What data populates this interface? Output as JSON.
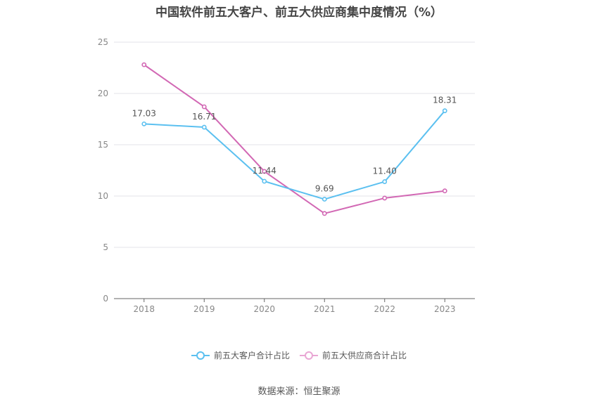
{
  "chart_data": {
    "type": "line",
    "title": "中国软件前五大客户、前五大供应商集中度情况（%）",
    "categories": [
      "2018",
      "2019",
      "2020",
      "2021",
      "2022",
      "2023"
    ],
    "ylim": [
      0,
      25
    ],
    "yticks": [
      "0",
      "5",
      "10",
      "15",
      "20",
      "25"
    ],
    "grid": true,
    "legend_position": "bottom",
    "series": [
      {
        "name": "前五大客户合计占比",
        "color": "#5bc0f0",
        "values": [
          17.03,
          16.71,
          11.44,
          9.69,
          11.4,
          18.31
        ],
        "labels": [
          "17.03",
          "16.71",
          "11.44",
          "9.69",
          "11.40",
          "18.31"
        ]
      },
      {
        "name": "前五大供应商合计占比",
        "color": "#d268b4",
        "values": [
          22.8,
          18.7,
          12.4,
          8.3,
          9.8,
          10.5
        ],
        "labels": []
      }
    ]
  },
  "source": "数据来源：恒生聚源"
}
